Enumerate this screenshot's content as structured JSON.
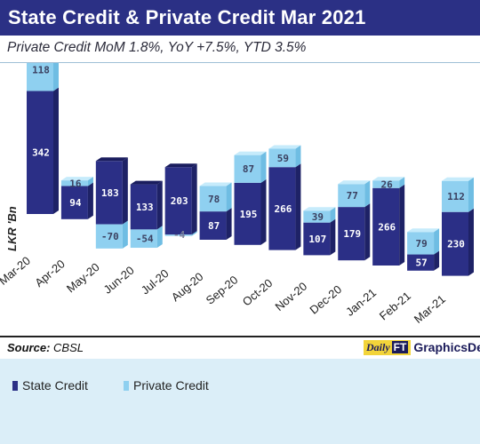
{
  "header": {
    "title": "State Credit & Private Credit Mar 2021",
    "subtitle": "Private Credit MoM 1.8%, YoY +7.5%, YTD 3.5%"
  },
  "colors": {
    "state": "#2b2f86",
    "private": "#8fd0f0",
    "title_bg": "#2b3085",
    "page_bg": "#dbeef8"
  },
  "chart_data": {
    "type": "bar",
    "stacked": true,
    "ylabel": "LKR 'Bn",
    "categories": [
      "Mar-20",
      "Apr-20",
      "May-20",
      "Jun-20",
      "Jul-20",
      "Aug-20",
      "Sep-20",
      "Oct-20",
      "Nov-20",
      "Dec-20",
      "Jan-21",
      "Feb-21",
      "Mar-21"
    ],
    "series": [
      {
        "name": "State Credit",
        "values": [
          342,
          94,
          183,
          133,
          203,
          87,
          195,
          266,
          107,
          179,
          266,
          57,
          230
        ]
      },
      {
        "name": "Private Credit",
        "values": [
          118,
          16,
          -70,
          -54,
          -4,
          78,
          87,
          59,
          39,
          77,
          26,
          79,
          112
        ]
      }
    ],
    "labels": {
      "state": [
        "342",
        "94",
        "183",
        "133",
        "203",
        "87",
        "195",
        "266",
        "107",
        "179",
        "266",
        "57",
        "230"
      ],
      "private": [
        "118",
        "16",
        "-70",
        "-54",
        "-4",
        "78",
        "87",
        "59",
        "39",
        "77",
        "26",
        "79",
        "112"
      ]
    },
    "legend_position": "bottom-left"
  },
  "legend": {
    "state_label": "State Credit",
    "private_label": "Private Credit"
  },
  "footer": {
    "source_label": "Source:",
    "source_value": "CBSL",
    "credit_logo": "Daily",
    "credit_logo_ft": "FT",
    "credit_text": "GraphicsDesk"
  }
}
